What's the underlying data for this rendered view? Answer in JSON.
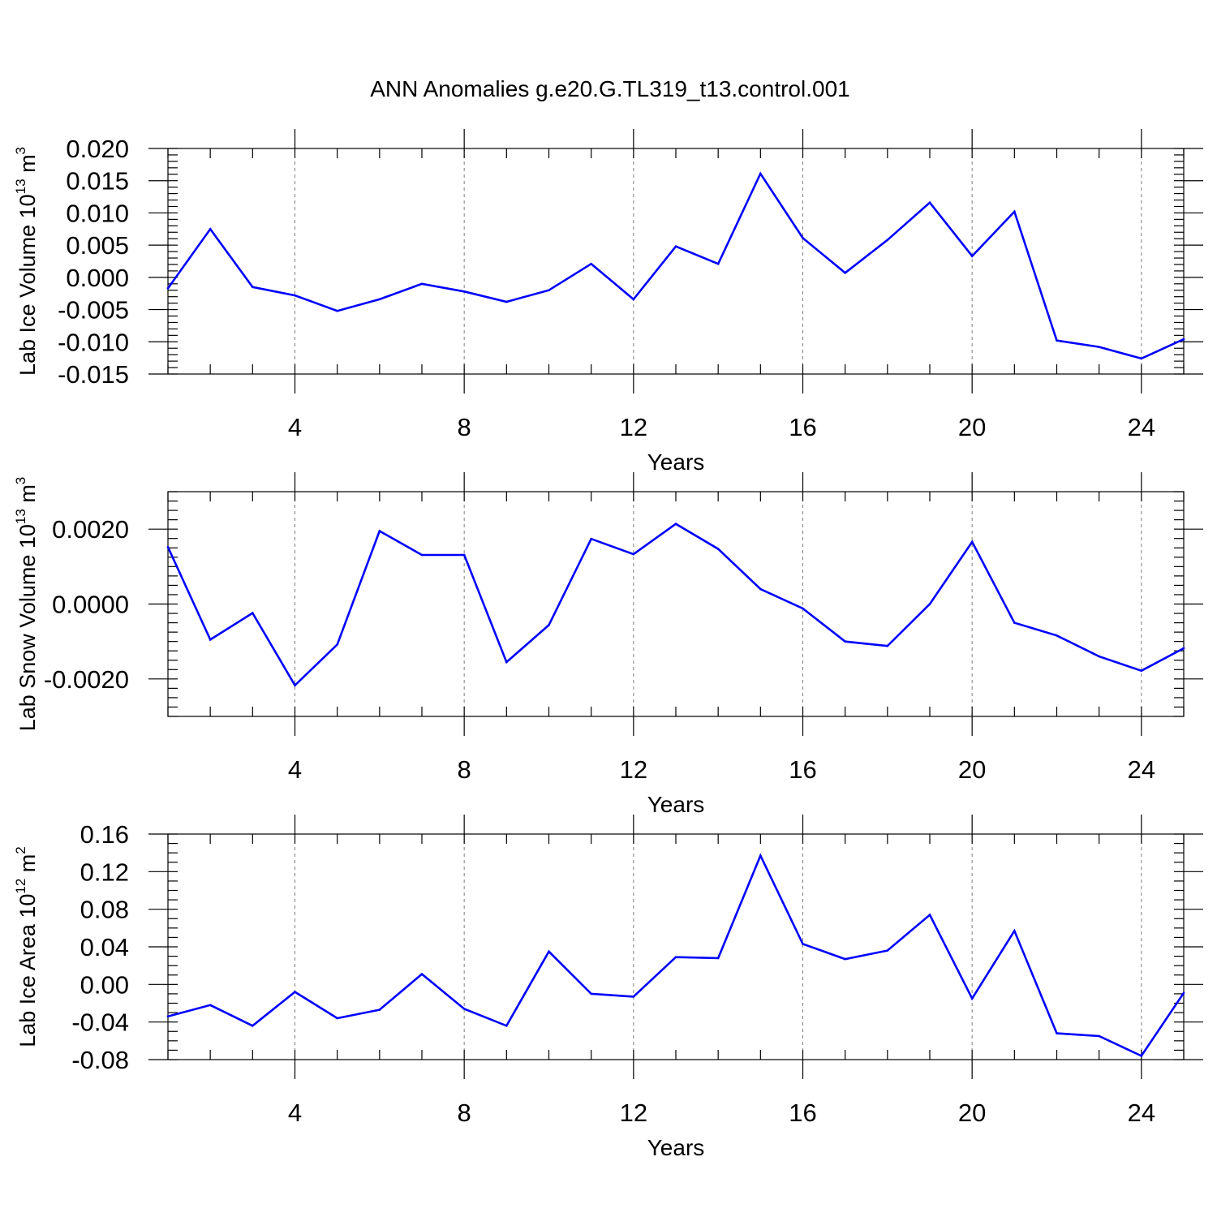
{
  "title": "ANN Anomalies g.e20.G.TL319_t13.control.001",
  "colors": {
    "series": "#0000ff",
    "frame": "#000000",
    "grid": "#7f7f7f"
  },
  "chart_data": [
    {
      "type": "line",
      "xlabel": "Years",
      "ylabel_main": "Lab Ice Volume 10",
      "ylabel_sup": "13",
      "ylabel_unit": " m",
      "ylabel_unit_sup": "3",
      "xlim": [
        1,
        25
      ],
      "ylim": [
        -0.015,
        0.02
      ],
      "xticks": [
        4,
        8,
        12,
        16,
        20,
        24
      ],
      "xtick_labels": [
        "4",
        "8",
        "12",
        "16",
        "20",
        "24"
      ],
      "yticks": [
        -0.015,
        -0.01,
        -0.005,
        0.0,
        0.005,
        0.01,
        0.015,
        0.02
      ],
      "ytick_labels": [
        "-0.015",
        "-0.010",
        "-0.005",
        "0.000",
        "0.005",
        "0.010",
        "0.015",
        "0.020"
      ],
      "x": [
        1,
        2,
        3,
        4,
        5,
        6,
        7,
        8,
        9,
        10,
        11,
        12,
        13,
        14,
        15,
        16,
        17,
        18,
        19,
        20,
        21,
        22,
        23,
        24,
        25
      ],
      "values": [
        -0.0017,
        0.0075,
        -0.0015,
        -0.0028,
        -0.0052,
        -0.0034,
        -0.001,
        -0.0022,
        -0.0038,
        -0.002,
        0.0021,
        -0.0034,
        0.0048,
        0.0021,
        0.0161,
        0.0061,
        0.0007,
        0.0058,
        0.0116,
        0.0033,
        0.0102,
        -0.0098,
        -0.0108,
        -0.0126,
        -0.0096
      ]
    },
    {
      "type": "line",
      "xlabel": "Years",
      "ylabel_main": "Lab Snow Volume 10",
      "ylabel_sup": "13",
      "ylabel_unit": " m",
      "ylabel_unit_sup": "3",
      "xlim": [
        1,
        25
      ],
      "ylim": [
        -0.003,
        0.003
      ],
      "xticks": [
        4,
        8,
        12,
        16,
        20,
        24
      ],
      "xtick_labels": [
        "4",
        "8",
        "12",
        "16",
        "20",
        "24"
      ],
      "yticks": [
        -0.002,
        0.0,
        0.002
      ],
      "ytick_labels": [
        "-0.0020",
        "0.0000",
        "0.0020"
      ],
      "x": [
        1,
        2,
        3,
        4,
        5,
        6,
        7,
        8,
        9,
        10,
        11,
        12,
        13,
        14,
        15,
        16,
        17,
        18,
        19,
        20,
        21,
        22,
        23,
        24,
        25
      ],
      "values": [
        0.00152,
        -0.00095,
        -0.00024,
        -0.00217,
        -0.00108,
        0.00195,
        0.00131,
        0.00131,
        -0.00155,
        -0.00056,
        0.00174,
        0.00133,
        0.00214,
        0.00147,
        0.0004,
        -0.00012,
        -0.001,
        -0.00112,
        0.0,
        0.00166,
        -0.0005,
        -0.00084,
        -0.0014,
        -0.00178,
        -0.00118
      ]
    },
    {
      "type": "line",
      "xlabel": "Years",
      "ylabel_main": "Lab Ice Area 10",
      "ylabel_sup": "12",
      "ylabel_unit": " m",
      "ylabel_unit_sup": "2",
      "xlim": [
        1,
        25
      ],
      "ylim": [
        -0.08,
        0.16
      ],
      "xticks": [
        4,
        8,
        12,
        16,
        20,
        24
      ],
      "xtick_labels": [
        "4",
        "8",
        "12",
        "16",
        "20",
        "24"
      ],
      "yticks": [
        -0.08,
        -0.04,
        0.0,
        0.04,
        0.08,
        0.12,
        0.16
      ],
      "ytick_labels": [
        "-0.08",
        "-0.04",
        "0.00",
        "0.04",
        "0.08",
        "0.12",
        "0.16"
      ],
      "x": [
        1,
        2,
        3,
        4,
        5,
        6,
        7,
        8,
        9,
        10,
        11,
        12,
        13,
        14,
        15,
        16,
        17,
        18,
        19,
        20,
        21,
        22,
        23,
        24,
        25
      ],
      "values": [
        -0.034,
        -0.022,
        -0.044,
        -0.008,
        -0.036,
        -0.027,
        0.011,
        -0.026,
        -0.044,
        0.035,
        -0.01,
        -0.013,
        0.029,
        0.028,
        0.137,
        0.043,
        0.027,
        0.036,
        0.074,
        -0.015,
        0.057,
        -0.052,
        -0.055,
        -0.076,
        -0.009
      ]
    }
  ]
}
